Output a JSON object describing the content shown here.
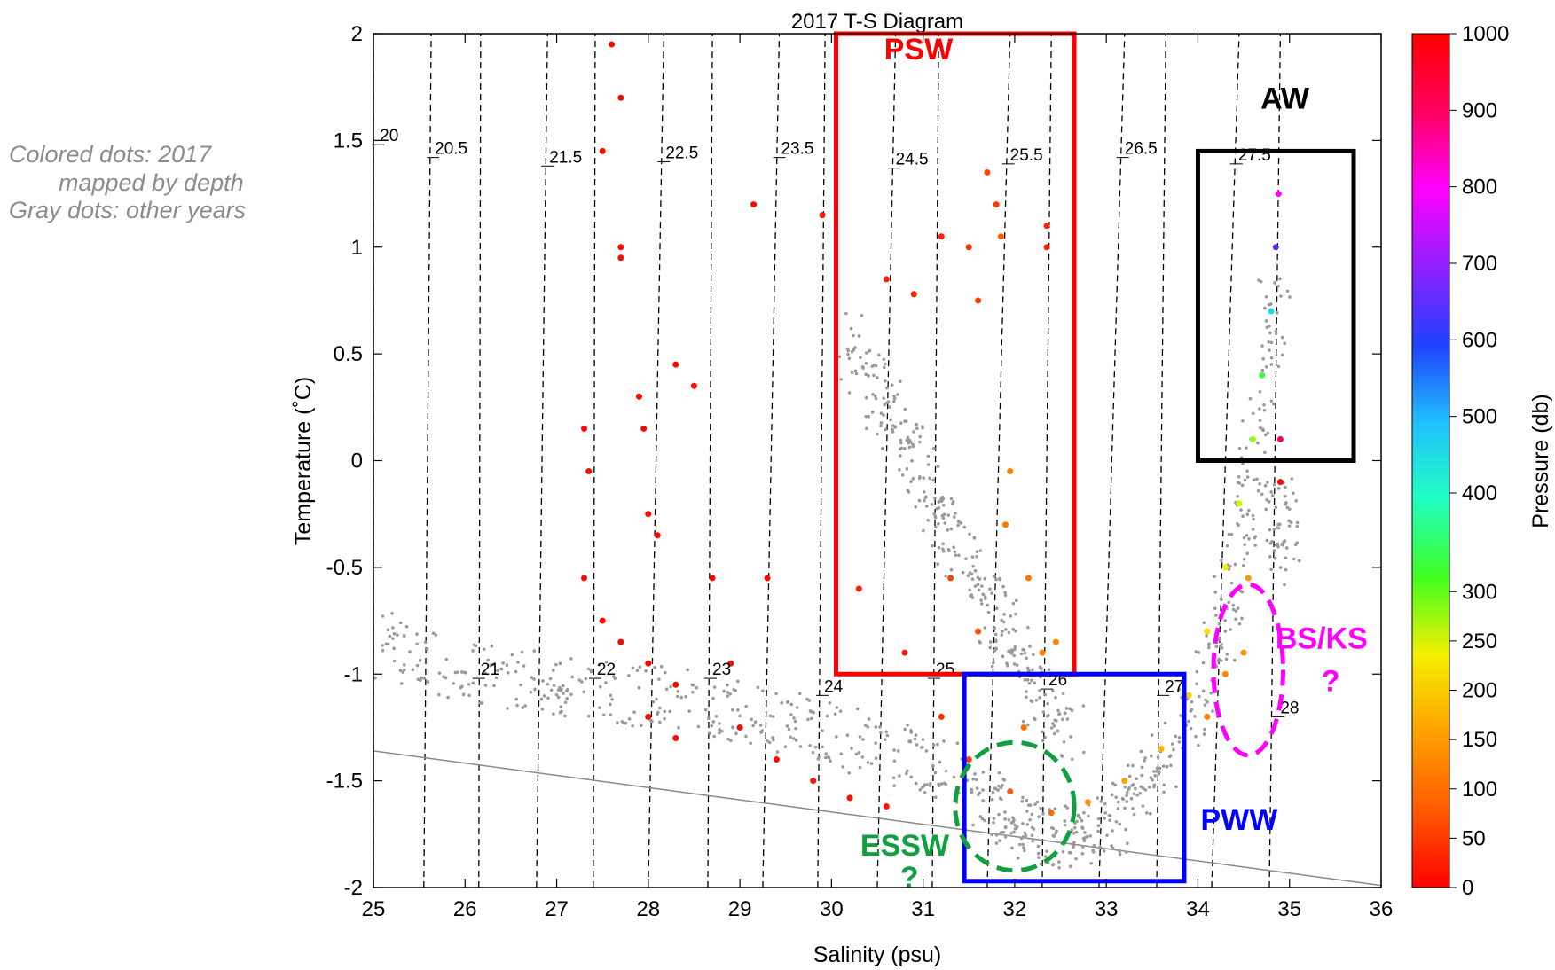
{
  "side_note": {
    "line1": "Colored dots: 2017",
    "line2": "mapped by depth",
    "line3": "Gray dots: other years"
  },
  "chart_data": {
    "type": "scatter",
    "title": "2017 T-S Diagram",
    "xlabel": "Salinity (psu)",
    "ylabel": "Temperature (˚C)",
    "xlim": [
      25,
      36
    ],
    "ylim": [
      -2,
      2
    ],
    "xticks": [
      "25",
      "26",
      "27",
      "28",
      "29",
      "30",
      "31",
      "32",
      "33",
      "34",
      "35",
      "36"
    ],
    "yticks": [
      "-2",
      "-1.5",
      "-1",
      "-0.5",
      "0",
      "0.5",
      "1",
      "1.5",
      "2"
    ],
    "grid": false,
    "density_contours": [
      {
        "label": "20",
        "x": [
          25.0,
          25.0
        ],
        "label_at": [
          25.05,
          1.48
        ]
      },
      {
        "label": "20.5",
        "x": [
          25.55,
          25.63
        ],
        "label_at": [
          25.65,
          1.42
        ]
      },
      {
        "label": "21",
        "x": [
          26.15,
          26.17
        ],
        "label_at": [
          26.15,
          -1.02
        ]
      },
      {
        "label": "21.5",
        "x": [
          26.78,
          26.9
        ],
        "label_at": [
          26.9,
          1.38
        ]
      },
      {
        "label": "22",
        "x": [
          27.4,
          27.42
        ],
        "label_at": [
          27.42,
          -1.02
        ]
      },
      {
        "label": "22.5",
        "x": [
          28.0,
          28.17
        ],
        "label_at": [
          28.17,
          1.4
        ]
      },
      {
        "label": "23",
        "x": [
          28.65,
          28.7
        ],
        "label_at": [
          28.68,
          -1.02
        ]
      },
      {
        "label": "23.5",
        "x": [
          29.25,
          29.43
        ],
        "label_at": [
          29.43,
          1.42
        ]
      },
      {
        "label": "24",
        "x": [
          29.85,
          29.93
        ],
        "label_at": [
          29.9,
          -1.1
        ]
      },
      {
        "label": "24.5",
        "x": [
          30.5,
          30.7
        ],
        "label_at": [
          30.68,
          1.37
        ]
      },
      {
        "label": "25",
        "x": [
          31.1,
          31.17
        ],
        "label_at": [
          31.12,
          -1.02
        ]
      },
      {
        "label": "25.5",
        "x": [
          31.7,
          31.95
        ],
        "label_at": [
          31.93,
          1.39
        ]
      },
      {
        "label": "26",
        "x": [
          32.3,
          32.4
        ],
        "label_at": [
          32.35,
          -1.07
        ]
      },
      {
        "label": "26.5",
        "x": [
          32.92,
          33.2
        ],
        "label_at": [
          33.18,
          1.42
        ]
      },
      {
        "label": "27",
        "x": [
          33.55,
          33.65
        ],
        "label_at": [
          33.62,
          -1.1
        ]
      },
      {
        "label": "27.5",
        "x": [
          34.15,
          34.45
        ],
        "label_at": [
          34.42,
          1.39
        ]
      },
      {
        "label": "28",
        "x": [
          34.78,
          34.9
        ],
        "label_at": [
          34.88,
          -1.2
        ]
      }
    ],
    "freezing_line": {
      "x": [
        25,
        36
      ],
      "y": [
        -1.36,
        -1.99
      ]
    },
    "colorbar": {
      "label": "Pressure (db)",
      "ticks": [
        "0",
        "50",
        "100",
        "150",
        "200",
        "250",
        "300",
        "400",
        "500",
        "600",
        "700",
        "800",
        "900",
        "1000"
      ],
      "tick_values": [
        0,
        50,
        100,
        150,
        200,
        250,
        300,
        400,
        500,
        600,
        700,
        800,
        900,
        1000
      ],
      "colors": [
        "#ff0000",
        "#ff5a00",
        "#ffa000",
        "#f5f000",
        "#40ff20",
        "#20ffc0",
        "#20c0ff",
        "#2040ff",
        "#9020ff",
        "#ff00ff",
        "#ff0060",
        "#ff0000"
      ]
    },
    "water_masses": [
      {
        "label": "PSW",
        "shape": "rect",
        "x": [
          30.05,
          32.65
        ],
        "y": [
          -1.0,
          2.0
        ],
        "color": "#ff0000",
        "label_at": [
          30.95,
          1.88
        ]
      },
      {
        "label": "AW",
        "shape": "rect",
        "x": [
          34.0,
          35.7
        ],
        "y": [
          0.0,
          1.45
        ],
        "color": "#000000",
        "label_at": [
          34.95,
          1.65
        ]
      },
      {
        "label": "PWW",
        "shape": "rect",
        "x": [
          31.45,
          33.85
        ],
        "y": [
          -1.97,
          -1.0
        ],
        "color": "#0000ff",
        "label_at": [
          34.45,
          -1.73
        ]
      },
      {
        "label": "ESSW",
        "shape": "ellipse",
        "center": [
          32.0,
          -1.62
        ],
        "radius": [
          0.65,
          0.3
        ],
        "color": "#10a040",
        "label_at": [
          30.8,
          -1.85
        ],
        "note": "?",
        "note_at": [
          30.85,
          -2.0
        ]
      },
      {
        "label": "BS/KS",
        "shape": "ellipse",
        "center": [
          34.55,
          -0.98
        ],
        "radius": [
          0.38,
          0.4
        ],
        "color": "#ff00ff",
        "label_at": [
          35.35,
          -0.88
        ],
        "note": "?",
        "note_at": [
          35.45,
          -1.08
        ]
      }
    ],
    "series": [
      {
        "name": "",
        "color": "#9a9a9a",
        "description_tracks": [
          {
            "x": [
              25.0,
              26.0,
              27.0,
              28.0,
              29.0,
              30.0,
              31.0,
              31.8,
              32.3,
              32.8,
              33.3,
              33.9,
              34.3,
              34.6,
              34.85
            ],
            "y": [
              -0.85,
              -0.98,
              -1.05,
              -1.1,
              -1.18,
              -1.28,
              -1.4,
              -1.62,
              -1.75,
              -1.78,
              -1.6,
              -1.25,
              -0.7,
              0.0,
              0.9
            ]
          },
          {
            "x": [
              30.2,
              30.6,
              31.0,
              31.4,
              31.8,
              32.2,
              32.6
            ],
            "y": [
              0.55,
              0.25,
              -0.1,
              -0.4,
              -0.75,
              -1.05,
              -1.3
            ]
          },
          {
            "x": [
              34.9,
              34.95
            ],
            "y": [
              -0.2,
              -0.5
            ]
          }
        ]
      },
      {
        "name": "",
        "color_by": "pressure",
        "points": [
          {
            "x": 27.6,
            "y": 1.95,
            "p": 5
          },
          {
            "x": 27.7,
            "y": 1.7,
            "p": 5
          },
          {
            "x": 27.5,
            "y": 1.45,
            "p": 5
          },
          {
            "x": 27.7,
            "y": 1.0,
            "p": 5
          },
          {
            "x": 27.7,
            "y": 0.95,
            "p": 5
          },
          {
            "x": 27.9,
            "y": 0.3,
            "p": 5
          },
          {
            "x": 27.95,
            "y": 0.15,
            "p": 5
          },
          {
            "x": 28.3,
            "y": 0.45,
            "p": 5
          },
          {
            "x": 28.5,
            "y": 0.35,
            "p": 5
          },
          {
            "x": 27.3,
            "y": 0.15,
            "p": 5
          },
          {
            "x": 27.35,
            "y": -0.05,
            "p": 5
          },
          {
            "x": 28.0,
            "y": -0.25,
            "p": 5
          },
          {
            "x": 28.1,
            "y": -0.35,
            "p": 5
          },
          {
            "x": 27.3,
            "y": -0.55,
            "p": 5
          },
          {
            "x": 27.5,
            "y": -0.75,
            "p": 5
          },
          {
            "x": 27.7,
            "y": -0.85,
            "p": 5
          },
          {
            "x": 28.0,
            "y": -0.95,
            "p": 5
          },
          {
            "x": 28.3,
            "y": -1.05,
            "p": 5
          },
          {
            "x": 28.0,
            "y": -1.2,
            "p": 5
          },
          {
            "x": 28.3,
            "y": -1.3,
            "p": 5
          },
          {
            "x": 28.7,
            "y": -0.55,
            "p": 5
          },
          {
            "x": 28.9,
            "y": -0.95,
            "p": 5
          },
          {
            "x": 29.0,
            "y": -1.25,
            "p": 5
          },
          {
            "x": 29.4,
            "y": -1.4,
            "p": 10
          },
          {
            "x": 29.3,
            "y": -0.55,
            "p": 5
          },
          {
            "x": 29.8,
            "y": -1.5,
            "p": 15
          },
          {
            "x": 30.2,
            "y": -1.58,
            "p": 15
          },
          {
            "x": 30.6,
            "y": -1.62,
            "p": 20
          },
          {
            "x": 29.15,
            "y": 1.2,
            "p": 10
          },
          {
            "x": 29.9,
            "y": 1.15,
            "p": 15
          },
          {
            "x": 30.6,
            "y": 0.85,
            "p": 25
          },
          {
            "x": 30.9,
            "y": 0.78,
            "p": 25
          },
          {
            "x": 31.2,
            "y": 1.05,
            "p": 30
          },
          {
            "x": 31.5,
            "y": 1.0,
            "p": 40
          },
          {
            "x": 31.8,
            "y": 1.2,
            "p": 50
          },
          {
            "x": 32.35,
            "y": 1.1,
            "p": 30
          },
          {
            "x": 32.35,
            "y": 1.0,
            "p": 30
          },
          {
            "x": 31.6,
            "y": 0.75,
            "p": 50
          },
          {
            "x": 31.7,
            "y": 1.35,
            "p": 60
          },
          {
            "x": 31.85,
            "y": 1.05,
            "p": 80
          },
          {
            "x": 30.3,
            "y": -0.6,
            "p": 25
          },
          {
            "x": 30.8,
            "y": -0.9,
            "p": 30
          },
          {
            "x": 31.2,
            "y": -1.2,
            "p": 40
          },
          {
            "x": 31.5,
            "y": -1.4,
            "p": 50
          },
          {
            "x": 31.3,
            "y": -0.55,
            "p": 60
          },
          {
            "x": 31.6,
            "y": -0.8,
            "p": 70
          },
          {
            "x": 31.9,
            "y": -0.3,
            "p": 110
          },
          {
            "x": 31.95,
            "y": -0.05,
            "p": 120
          },
          {
            "x": 32.15,
            "y": -0.55,
            "p": 110
          },
          {
            "x": 32.3,
            "y": -0.9,
            "p": 120
          },
          {
            "x": 32.1,
            "y": -1.25,
            "p": 100
          },
          {
            "x": 32.45,
            "y": -0.85,
            "p": 130
          },
          {
            "x": 31.95,
            "y": -1.55,
            "p": 80
          },
          {
            "x": 32.4,
            "y": -1.65,
            "p": 100
          },
          {
            "x": 32.8,
            "y": -1.6,
            "p": 140
          },
          {
            "x": 33.2,
            "y": -1.5,
            "p": 160
          },
          {
            "x": 33.6,
            "y": -1.35,
            "p": 180
          },
          {
            "x": 33.9,
            "y": -1.1,
            "p": 200
          },
          {
            "x": 34.1,
            "y": -0.8,
            "p": 220
          },
          {
            "x": 34.3,
            "y": -0.5,
            "p": 240
          },
          {
            "x": 34.45,
            "y": -0.2,
            "p": 250
          },
          {
            "x": 34.6,
            "y": 0.1,
            "p": 280
          },
          {
            "x": 34.7,
            "y": 0.4,
            "p": 330
          },
          {
            "x": 34.8,
            "y": 0.7,
            "p": 450
          },
          {
            "x": 34.85,
            "y": 1.0,
            "p": 650
          },
          {
            "x": 34.88,
            "y": 1.25,
            "p": 800
          },
          {
            "x": 34.55,
            "y": -0.55,
            "p": 150
          },
          {
            "x": 34.5,
            "y": -0.9,
            "p": 140
          },
          {
            "x": 34.3,
            "y": -1.0,
            "p": 130
          },
          {
            "x": 34.1,
            "y": -1.2,
            "p": 120
          },
          {
            "x": 34.9,
            "y": 0.1,
            "p": 900
          },
          {
            "x": 34.9,
            "y": -0.1,
            "p": 1000
          }
        ]
      }
    ]
  }
}
